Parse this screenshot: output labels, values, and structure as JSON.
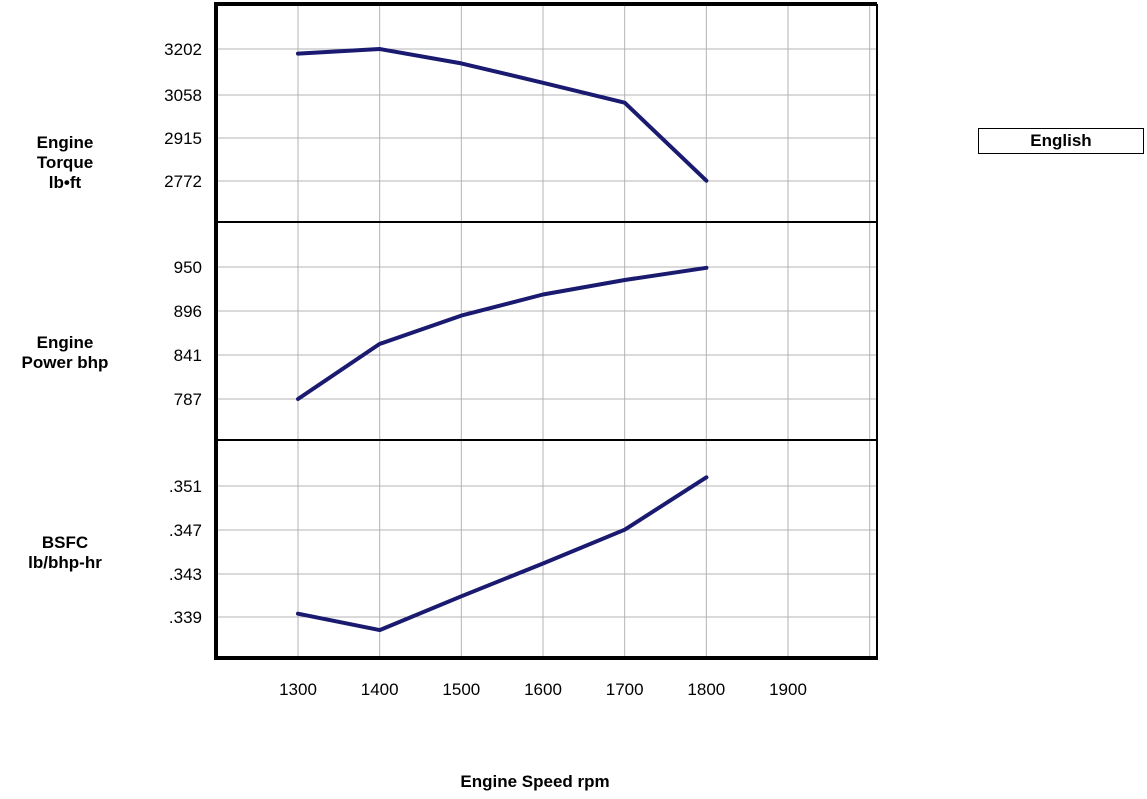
{
  "units_button_label": "English",
  "chart_data": {
    "type": "line",
    "x_categories": [
      1300,
      1400,
      1500,
      1600,
      1700,
      1800,
      1900
    ],
    "xlabel": "Engine Speed rpm",
    "line_color": "#1a1a70",
    "grid": true,
    "panels": [
      {
        "name": "torque",
        "ylabel_lines": [
          "Engine",
          "Torque",
          "lb•ft"
        ],
        "tick_labels": [
          "3202",
          "3058",
          "2915",
          "2772"
        ],
        "tick_values": [
          3202,
          3058,
          2915,
          2772
        ],
        "x": [
          1300,
          1400,
          1500,
          1600,
          1700,
          1800
        ],
        "values": [
          3187,
          3202,
          3155,
          3092,
          3027,
          2773
        ]
      },
      {
        "name": "power",
        "ylabel_lines": [
          "Engine",
          "Power bhp"
        ],
        "tick_labels": [
          "950",
          "896",
          "841",
          "787"
        ],
        "tick_values": [
          950,
          896,
          841,
          787
        ],
        "x": [
          1300,
          1400,
          1500,
          1600,
          1700,
          1800
        ],
        "values": [
          787,
          855,
          890,
          916,
          934,
          949
        ]
      },
      {
        "name": "bsfc",
        "ylabel_lines": [
          "BSFC",
          "lb/bhp-hr"
        ],
        "tick_labels": [
          ".351",
          ".347",
          ".343",
          ".339"
        ],
        "tick_values": [
          0.351,
          0.347,
          0.343,
          0.339
        ],
        "x": [
          1300,
          1400,
          1500,
          1600,
          1700,
          1800
        ],
        "values": [
          0.3393,
          0.3378,
          0.3409,
          0.3439,
          0.347,
          0.3518
        ]
      }
    ]
  }
}
